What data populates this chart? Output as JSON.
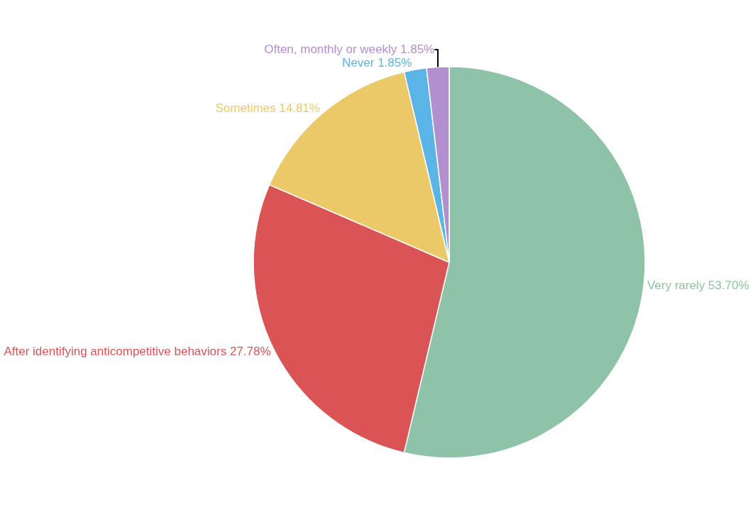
{
  "chart_data": {
    "type": "pie",
    "categories": [
      "Very rarely",
      "After identifying anticompetitive behaviors",
      "Sometimes",
      "Never",
      "Often, monthly or weekly"
    ],
    "values": [
      53.7,
      27.78,
      14.81,
      1.85,
      1.85
    ],
    "value_labels": [
      "53.70%",
      "27.78%",
      "14.81%",
      "1.85%",
      "1.85%"
    ],
    "colors": [
      "#8fc3a7",
      "#db5455",
      "#ecc968",
      "#5ab4e5",
      "#b28fce"
    ],
    "legend": false
  }
}
